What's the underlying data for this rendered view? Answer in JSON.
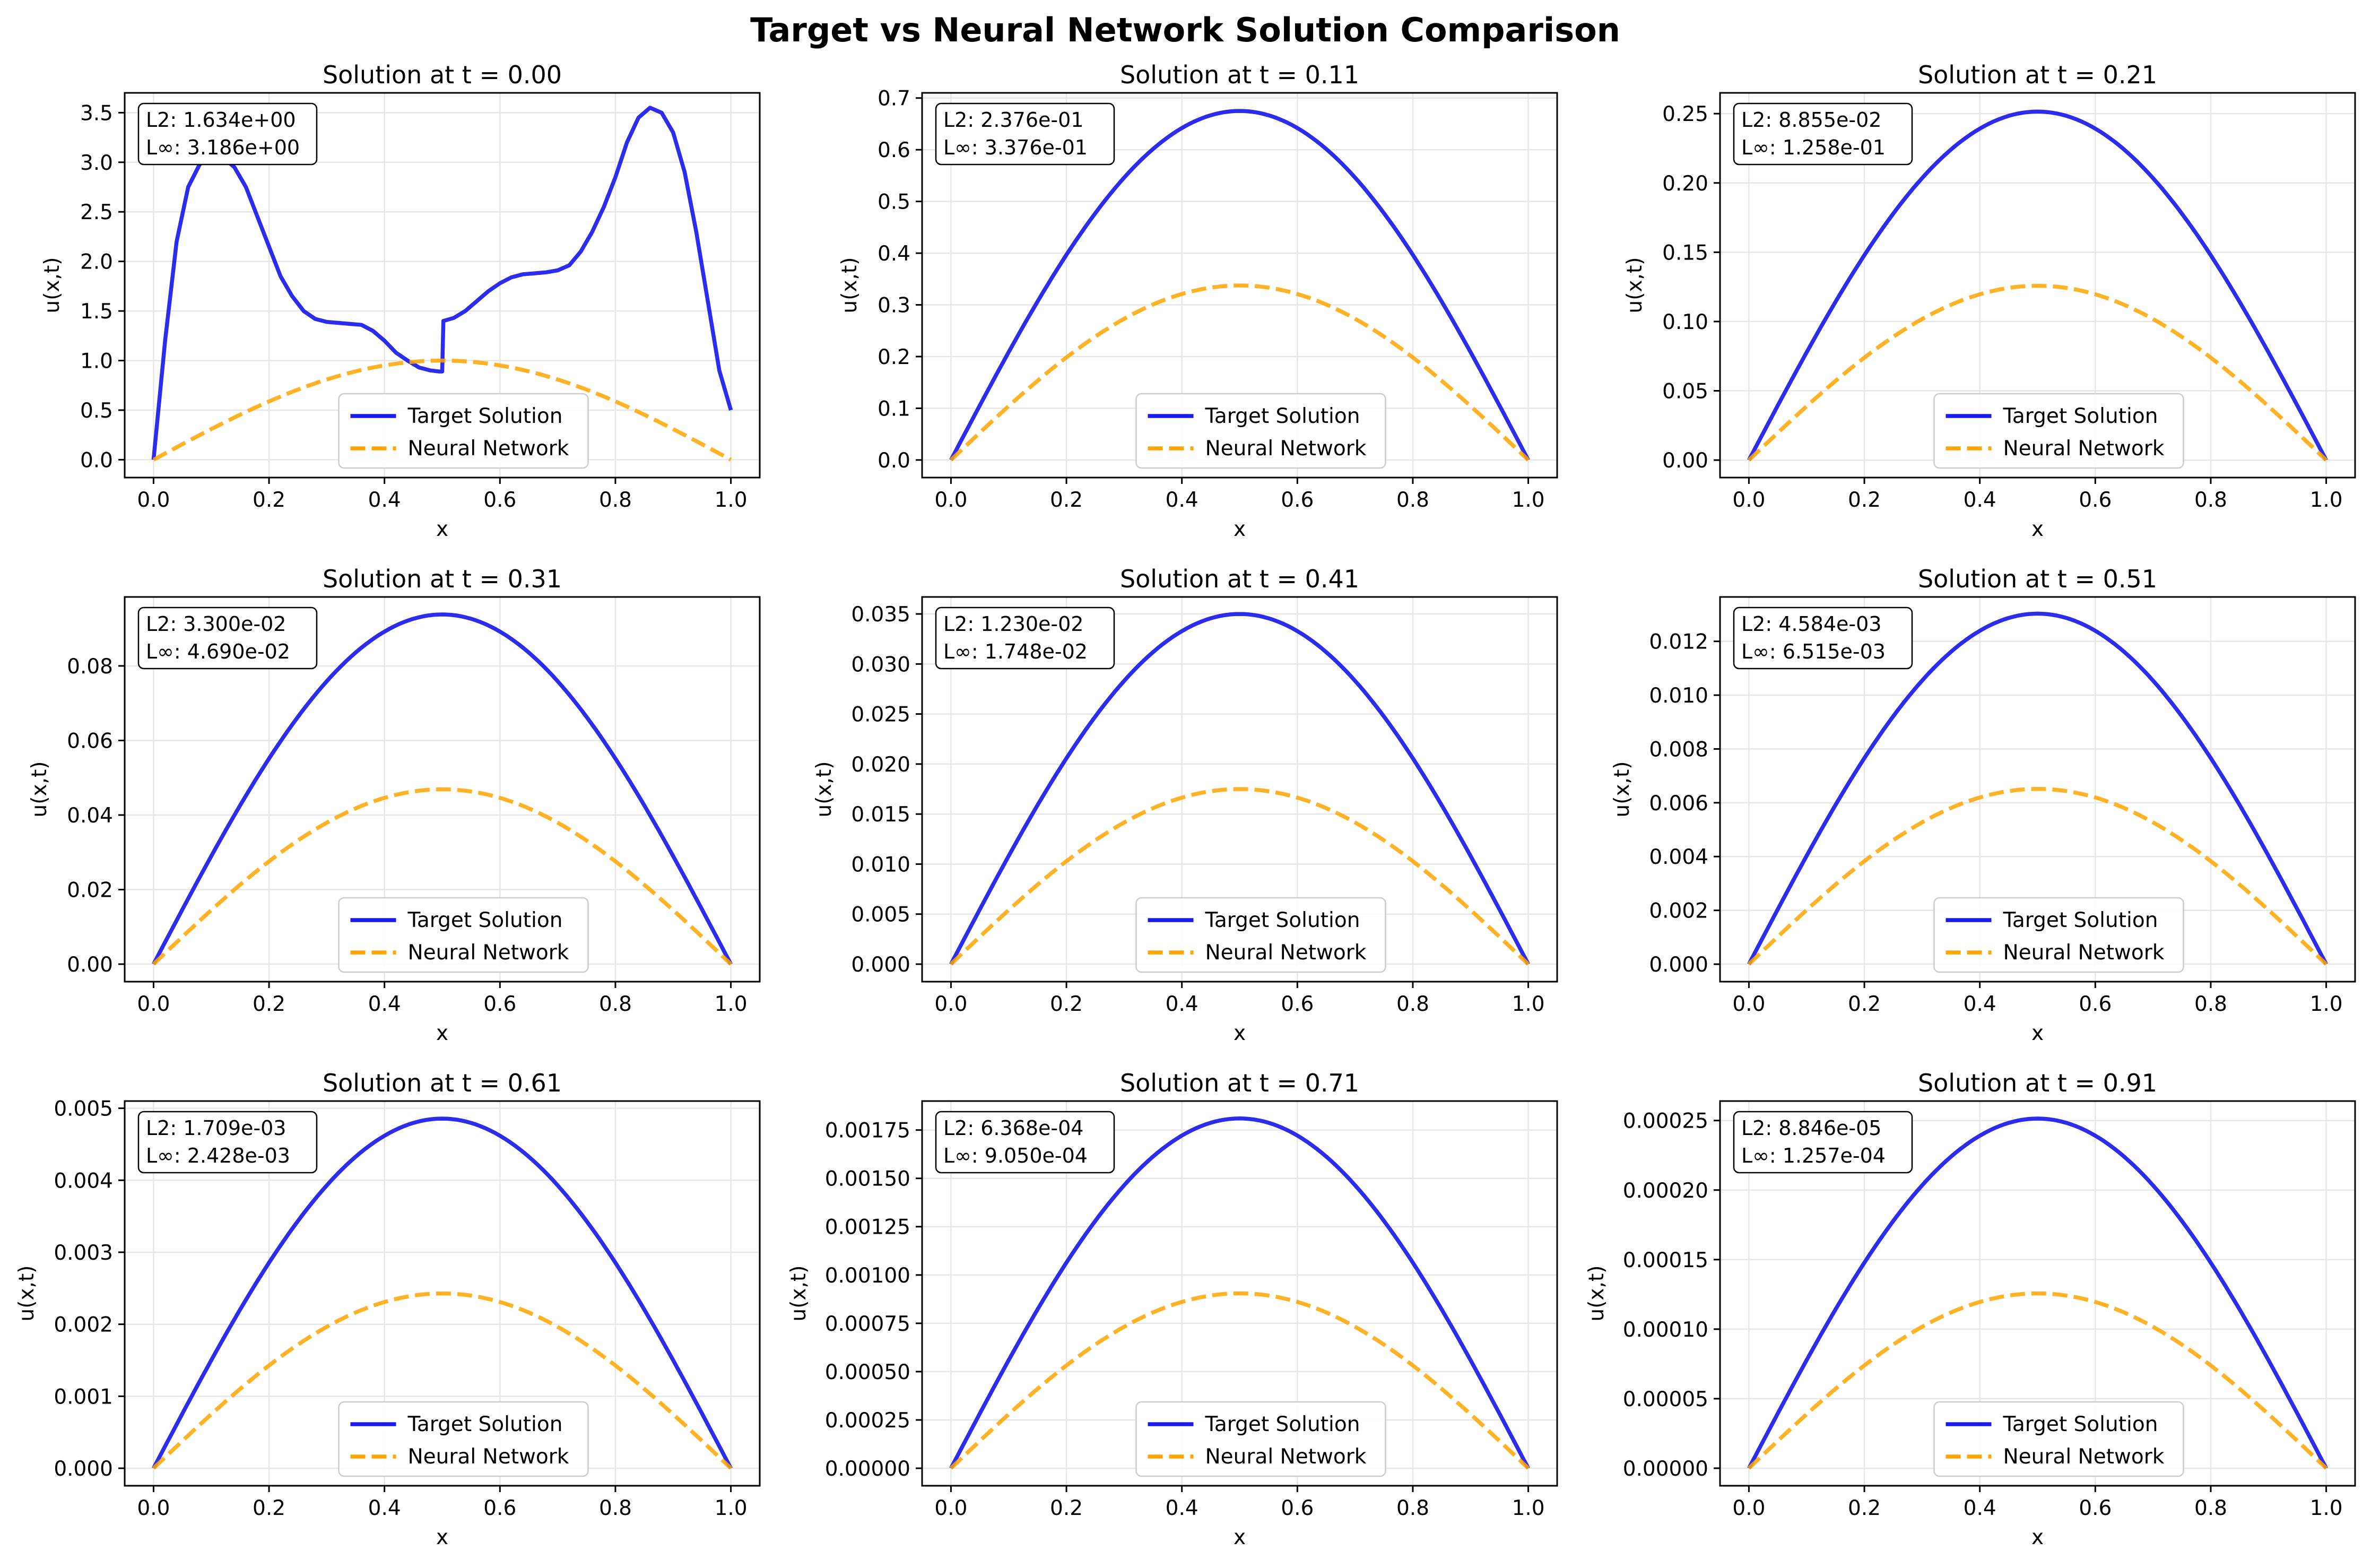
{
  "figure": {
    "title": "Target vs Neural Network Solution Comparison"
  },
  "chart_data": [
    {
      "type": "line",
      "title": "Solution at t = 0.00",
      "xlabel": "x",
      "ylabel": "u(x,t)",
      "xlim": [
        -0.05,
        1.05
      ],
      "ylim": [
        -0.18,
        3.7
      ],
      "xticks": [
        0.0,
        0.2,
        0.4,
        0.6,
        0.8,
        1.0
      ],
      "xtick_labels": [
        "0.0",
        "0.2",
        "0.4",
        "0.6",
        "0.8",
        "1.0"
      ],
      "yticks": [
        0.0,
        0.5,
        1.0,
        1.5,
        2.0,
        2.5,
        3.0,
        3.5
      ],
      "ytick_labels": [
        "0.0",
        "0.5",
        "1.0",
        "1.5",
        "2.0",
        "2.5",
        "3.0",
        "3.5"
      ],
      "stats": [
        "L2: 1.634e+00",
        "L∞: 3.186e+00"
      ],
      "legend": [
        "Target Solution",
        "Neural Network"
      ],
      "target": {
        "x": [
          0.0,
          0.02,
          0.04,
          0.06,
          0.08,
          0.1,
          0.12,
          0.14,
          0.16,
          0.18,
          0.2,
          0.22,
          0.24,
          0.26,
          0.28,
          0.3,
          0.32,
          0.34,
          0.36,
          0.38,
          0.4,
          0.42,
          0.44,
          0.46,
          0.48,
          0.495,
          0.5,
          0.502,
          0.52,
          0.54,
          0.56,
          0.58,
          0.6,
          0.62,
          0.64,
          0.66,
          0.68,
          0.7,
          0.72,
          0.74,
          0.76,
          0.78,
          0.8,
          0.82,
          0.84,
          0.86,
          0.88,
          0.9,
          0.92,
          0.94,
          0.96,
          0.98,
          1.0
        ],
        "y": [
          0.0,
          1.2,
          2.2,
          2.75,
          2.98,
          3.05,
          3.05,
          2.95,
          2.75,
          2.45,
          2.15,
          1.85,
          1.65,
          1.5,
          1.42,
          1.39,
          1.38,
          1.37,
          1.36,
          1.3,
          1.2,
          1.08,
          1.0,
          0.93,
          0.9,
          0.89,
          0.89,
          1.4,
          1.43,
          1.5,
          1.6,
          1.7,
          1.78,
          1.84,
          1.87,
          1.88,
          1.89,
          1.91,
          1.96,
          2.1,
          2.3,
          2.55,
          2.85,
          3.2,
          3.45,
          3.55,
          3.5,
          3.3,
          2.9,
          2.3,
          1.6,
          0.9,
          0.5
        ]
      },
      "nn_amplitude": 1.0
    },
    {
      "type": "line",
      "title": "Solution at t = 0.11",
      "xlabel": "x",
      "ylabel": "u(x,t)",
      "xlim": [
        -0.05,
        1.05
      ],
      "ylim": [
        -0.034,
        0.71
      ],
      "xticks": [
        0.0,
        0.2,
        0.4,
        0.6,
        0.8,
        1.0
      ],
      "xtick_labels": [
        "0.0",
        "0.2",
        "0.4",
        "0.6",
        "0.8",
        "1.0"
      ],
      "yticks": [
        0.0,
        0.1,
        0.2,
        0.3,
        0.4,
        0.5,
        0.6,
        0.7
      ],
      "ytick_labels": [
        "0.0",
        "0.1",
        "0.2",
        "0.3",
        "0.4",
        "0.5",
        "0.6",
        "0.7"
      ],
      "stats": [
        "L2: 2.376e-01",
        "L∞: 3.376e-01"
      ],
      "legend": [
        "Target Solution",
        "Neural Network"
      ],
      "target_amplitude": 0.675,
      "nn_amplitude": 0.3375
    },
    {
      "type": "line",
      "title": "Solution at t = 0.21",
      "xlabel": "x",
      "ylabel": "u(x,t)",
      "xlim": [
        -0.05,
        1.05
      ],
      "ylim": [
        -0.0126,
        0.265
      ],
      "xticks": [
        0.0,
        0.2,
        0.4,
        0.6,
        0.8,
        1.0
      ],
      "xtick_labels": [
        "0.0",
        "0.2",
        "0.4",
        "0.6",
        "0.8",
        "1.0"
      ],
      "yticks": [
        0.0,
        0.05,
        0.1,
        0.15,
        0.2,
        0.25
      ],
      "ytick_labels": [
        "0.00",
        "0.05",
        "0.10",
        "0.15",
        "0.20",
        "0.25"
      ],
      "stats": [
        "L2: 8.855e-02",
        "L∞: 1.258e-01"
      ],
      "legend": [
        "Target Solution",
        "Neural Network"
      ],
      "target_amplitude": 0.2515,
      "nn_amplitude": 0.1258
    },
    {
      "type": "line",
      "title": "Solution at t = 0.31",
      "xlabel": "x",
      "ylabel": "u(x,t)",
      "xlim": [
        -0.05,
        1.05
      ],
      "ylim": [
        -0.0047,
        0.0985
      ],
      "xticks": [
        0.0,
        0.2,
        0.4,
        0.6,
        0.8,
        1.0
      ],
      "xtick_labels": [
        "0.0",
        "0.2",
        "0.4",
        "0.6",
        "0.8",
        "1.0"
      ],
      "yticks": [
        0.0,
        0.02,
        0.04,
        0.06,
        0.08
      ],
      "ytick_labels": [
        "0.00",
        "0.02",
        "0.04",
        "0.06",
        "0.08"
      ],
      "stats": [
        "L2: 3.300e-02",
        "L∞: 4.690e-02"
      ],
      "legend": [
        "Target Solution",
        "Neural Network"
      ],
      "target_amplitude": 0.0938,
      "nn_amplitude": 0.0469
    },
    {
      "type": "line",
      "title": "Solution at t = 0.41",
      "xlabel": "x",
      "ylabel": "u(x,t)",
      "xlim": [
        -0.05,
        1.05
      ],
      "ylim": [
        -0.00175,
        0.0367
      ],
      "xticks": [
        0.0,
        0.2,
        0.4,
        0.6,
        0.8,
        1.0
      ],
      "xtick_labels": [
        "0.0",
        "0.2",
        "0.4",
        "0.6",
        "0.8",
        "1.0"
      ],
      "yticks": [
        0.0,
        0.005,
        0.01,
        0.015,
        0.02,
        0.025,
        0.03,
        0.035
      ],
      "ytick_labels": [
        "0.000",
        "0.005",
        "0.010",
        "0.015",
        "0.020",
        "0.025",
        "0.030",
        "0.035"
      ],
      "stats": [
        "L2: 1.230e-02",
        "L∞: 1.748e-02"
      ],
      "legend": [
        "Target Solution",
        "Neural Network"
      ],
      "target_amplitude": 0.035,
      "nn_amplitude": 0.0175
    },
    {
      "type": "line",
      "title": "Solution at t = 0.51",
      "xlabel": "x",
      "ylabel": "u(x,t)",
      "xlim": [
        -0.05,
        1.05
      ],
      "ylim": [
        -0.00065,
        0.01365
      ],
      "xticks": [
        0.0,
        0.2,
        0.4,
        0.6,
        0.8,
        1.0
      ],
      "xtick_labels": [
        "0.0",
        "0.2",
        "0.4",
        "0.6",
        "0.8",
        "1.0"
      ],
      "yticks": [
        0.0,
        0.002,
        0.004,
        0.006,
        0.008,
        0.01,
        0.012
      ],
      "ytick_labels": [
        "0.000",
        "0.002",
        "0.004",
        "0.006",
        "0.008",
        "0.010",
        "0.012"
      ],
      "stats": [
        "L2: 4.584e-03",
        "L∞: 6.515e-03"
      ],
      "legend": [
        "Target Solution",
        "Neural Network"
      ],
      "target_amplitude": 0.01303,
      "nn_amplitude": 0.006515
    },
    {
      "type": "line",
      "title": "Solution at t = 0.61",
      "xlabel": "x",
      "ylabel": "u(x,t)",
      "xlim": [
        -0.05,
        1.05
      ],
      "ylim": [
        -0.000243,
        0.0051
      ],
      "xticks": [
        0.0,
        0.2,
        0.4,
        0.6,
        0.8,
        1.0
      ],
      "xtick_labels": [
        "0.0",
        "0.2",
        "0.4",
        "0.6",
        "0.8",
        "1.0"
      ],
      "yticks": [
        0.0,
        0.001,
        0.002,
        0.003,
        0.004,
        0.005
      ],
      "ytick_labels": [
        "0.000",
        "0.001",
        "0.002",
        "0.003",
        "0.004",
        "0.005"
      ],
      "stats": [
        "L2: 1.709e-03",
        "L∞: 2.428e-03"
      ],
      "legend": [
        "Target Solution",
        "Neural Network"
      ],
      "target_amplitude": 0.004856,
      "nn_amplitude": 0.002428
    },
    {
      "type": "line",
      "title": "Solution at t = 0.71",
      "xlabel": "x",
      "ylabel": "u(x,t)",
      "xlim": [
        -0.05,
        1.05
      ],
      "ylim": [
        -9.05e-05,
        0.0019
      ],
      "xticks": [
        0.0,
        0.2,
        0.4,
        0.6,
        0.8,
        1.0
      ],
      "xtick_labels": [
        "0.0",
        "0.2",
        "0.4",
        "0.6",
        "0.8",
        "1.0"
      ],
      "yticks": [
        0.0,
        0.00025,
        0.0005,
        0.00075,
        0.001,
        0.00125,
        0.0015,
        0.00175
      ],
      "ytick_labels": [
        "0.00000",
        "0.00025",
        "0.00050",
        "0.00075",
        "0.00100",
        "0.00125",
        "0.00150",
        "0.00175"
      ],
      "stats": [
        "L2: 6.368e-04",
        "L∞: 9.050e-04"
      ],
      "legend": [
        "Target Solution",
        "Neural Network"
      ],
      "target_amplitude": 0.00181,
      "nn_amplitude": 0.000905
    },
    {
      "type": "line",
      "title": "Solution at t = 0.91",
      "xlabel": "x",
      "ylabel": "u(x,t)",
      "xlim": [
        -0.05,
        1.05
      ],
      "ylim": [
        -1.26e-05,
        0.000264
      ],
      "xticks": [
        0.0,
        0.2,
        0.4,
        0.6,
        0.8,
        1.0
      ],
      "xtick_labels": [
        "0.0",
        "0.2",
        "0.4",
        "0.6",
        "0.8",
        "1.0"
      ],
      "yticks": [
        0.0,
        5e-05,
        0.0001,
        0.00015,
        0.0002,
        0.00025
      ],
      "ytick_labels": [
        "0.00000",
        "0.00005",
        "0.00010",
        "0.00015",
        "0.00020",
        "0.00025"
      ],
      "stats": [
        "L2: 8.846e-05",
        "L∞: 1.257e-04"
      ],
      "legend": [
        "Target Solution",
        "Neural Network"
      ],
      "target_amplitude": 0.0002514,
      "nn_amplitude": 0.0001257
    }
  ],
  "colors": {
    "target": "#1a1aee",
    "neural_network": "#ffa500",
    "grid": "#e6e6e6",
    "axes": "#000000"
  }
}
